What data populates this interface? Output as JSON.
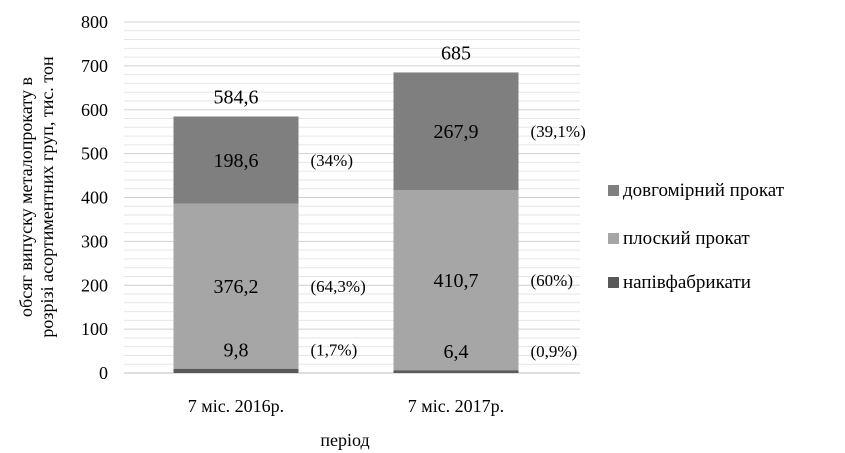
{
  "chart_data": {
    "type": "bar",
    "stacked": true,
    "categories": [
      "7 міс. 2016р.",
      "7 міс. 2017р."
    ],
    "series": [
      {
        "name": "напівфабрикати",
        "values": [
          9.8,
          6.4
        ],
        "labels": [
          "9,8",
          "6,4"
        ],
        "percent_labels": [
          "(1,7%)",
          "(0,9%)"
        ],
        "color": "#595959"
      },
      {
        "name": "плоский прокат",
        "values": [
          376.2,
          410.7
        ],
        "labels": [
          "376,2",
          "410,7"
        ],
        "percent_labels": [
          "(64,3%)",
          "(60%)"
        ],
        "color": "#a6a6a6"
      },
      {
        "name": "довгомірний прокат",
        "values": [
          198.6,
          267.9
        ],
        "labels": [
          "198,6",
          "267,9"
        ],
        "percent_labels": [
          "(34%)",
          "(39,1%)"
        ],
        "color": "#7f7f7f"
      }
    ],
    "totals": [
      584.6,
      685
    ],
    "total_labels": [
      "584,6",
      "685"
    ],
    "ylim": [
      0,
      800
    ],
    "yticks": [
      0,
      100,
      200,
      300,
      400,
      500,
      600,
      700,
      800
    ],
    "xlabel": "період",
    "ylabel_lines": [
      "обсяг випуску металопрокату в",
      "розрізі асортиментних груп, тис. тон"
    ],
    "grid": true,
    "legend_position": "right",
    "legend_order": [
      2,
      1,
      0
    ]
  }
}
